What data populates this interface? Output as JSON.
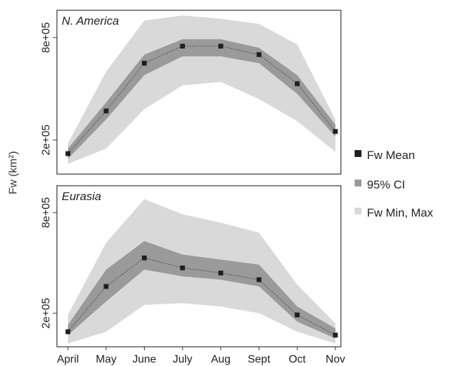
{
  "chart_data": {
    "type": "area",
    "ylabel": "Fw (km²)",
    "categories": [
      "April",
      "May",
      "June",
      "July",
      "Aug",
      "Sept",
      "Oct",
      "Nov"
    ],
    "ylim": [
      0,
      960000
    ],
    "yticks": [
      200000,
      800000
    ],
    "ytick_labels": [
      "2e+05",
      "8e+05"
    ],
    "legend_position": "right",
    "legend": [
      "Fw Mean",
      "95% CI",
      "Fw Min, Max"
    ],
    "colors": {
      "mean": "#1f1f1f",
      "ci": "#9a9a9a",
      "minmax": "#d9d9d9",
      "line": "#555555",
      "frame": "#333333"
    },
    "panels": [
      {
        "title": "N. America",
        "series": [
          {
            "name": "Fw Mean",
            "values": [
              120000,
              370000,
              650000,
              750000,
              750000,
              700000,
              530000,
              250000
            ]
          },
          {
            "name": "95% CI Upper",
            "values": [
              150000,
              420000,
              700000,
              790000,
              790000,
              740000,
              580000,
              290000
            ]
          },
          {
            "name": "95% CI Lower",
            "values": [
              90000,
              320000,
              580000,
              690000,
              690000,
              650000,
              470000,
              220000
            ]
          },
          {
            "name": "Fw Max",
            "values": [
              180000,
              600000,
              900000,
              930000,
              910000,
              880000,
              760000,
              320000
            ]
          },
          {
            "name": "Fw Min",
            "values": [
              60000,
              150000,
              380000,
              520000,
              540000,
              440000,
              310000,
              130000
            ]
          }
        ]
      },
      {
        "title": "Eurasia",
        "series": [
          {
            "name": "Fw Mean",
            "values": [
              90000,
              360000,
              530000,
              470000,
              440000,
              400000,
              190000,
              70000
            ]
          },
          {
            "name": "95% CI Upper",
            "values": [
              130000,
              460000,
              630000,
              550000,
              520000,
              490000,
              240000,
              110000
            ]
          },
          {
            "name": "95% CI Lower",
            "values": [
              70000,
              270000,
              460000,
              420000,
              400000,
              360000,
              150000,
              50000
            ]
          },
          {
            "name": "Fw Max",
            "values": [
              190000,
              620000,
              880000,
              790000,
              740000,
              680000,
              370000,
              140000
            ]
          },
          {
            "name": "Fw Min",
            "values": [
              20000,
              90000,
              250000,
              260000,
              240000,
              200000,
              90000,
              20000
            ]
          }
        ]
      }
    ]
  }
}
